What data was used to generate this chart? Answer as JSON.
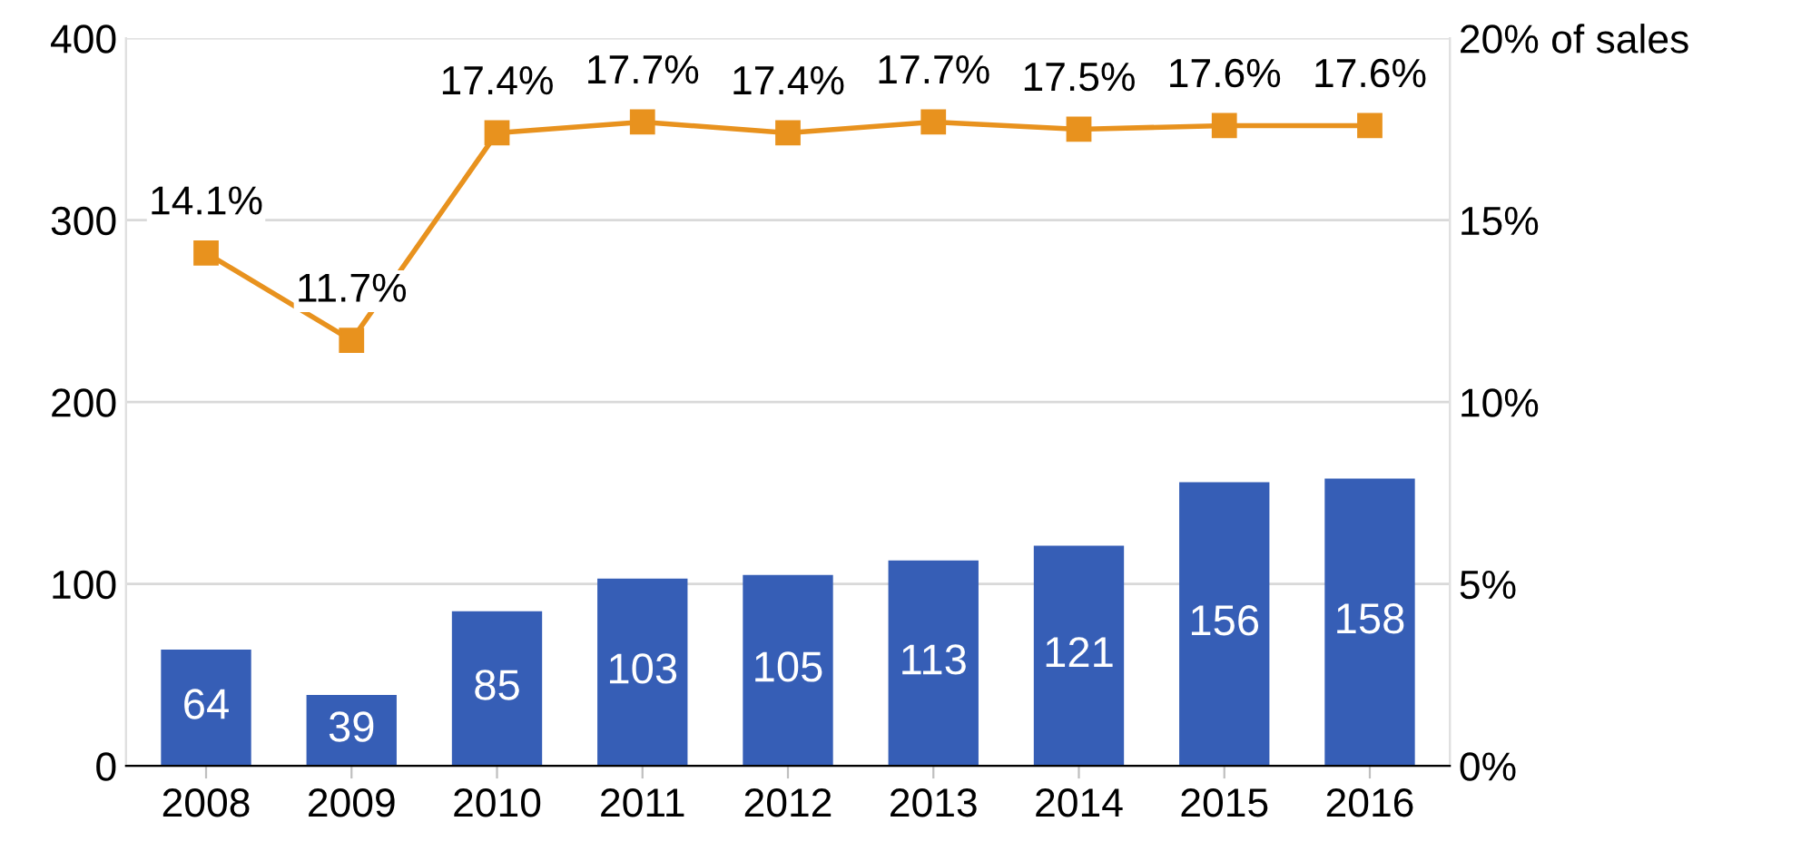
{
  "chart_data": {
    "type": "bar",
    "categories": [
      "2008",
      "2009",
      "2010",
      "2011",
      "2012",
      "2013",
      "2014",
      "2015",
      "2016"
    ],
    "series": [
      {
        "color": "#365eb6",
        "values": [
          64,
          39,
          85,
          103,
          105,
          113,
          121,
          156,
          158
        ]
      },
      {
        "type": "line",
        "axis": "y2",
        "color": "#e8921e",
        "marker": "square",
        "line_style": "solid",
        "values": [
          14.1,
          11.7,
          17.4,
          17.7,
          17.4,
          17.7,
          17.5,
          17.6,
          17.6
        ],
        "value_labels": [
          "14.1%",
          "11.7%",
          "17.4%",
          "17.7%",
          "17.4%",
          "17.7%",
          "17.5%",
          "17.6%",
          "17.6%"
        ]
      }
    ],
    "data_labels": true,
    "ylim": [
      0,
      400
    ],
    "yticks": [
      0,
      100,
      200,
      300,
      400
    ],
    "y2lim": [
      0,
      20
    ],
    "y2ticks": [
      {
        "value": 0,
        "label": "0%"
      },
      {
        "value": 5,
        "label": "5%"
      },
      {
        "value": 10,
        "label": "10%"
      },
      {
        "value": 15,
        "label": "15%"
      },
      {
        "value": 20,
        "label": "20% of sales"
      }
    ],
    "grid": "y"
  }
}
